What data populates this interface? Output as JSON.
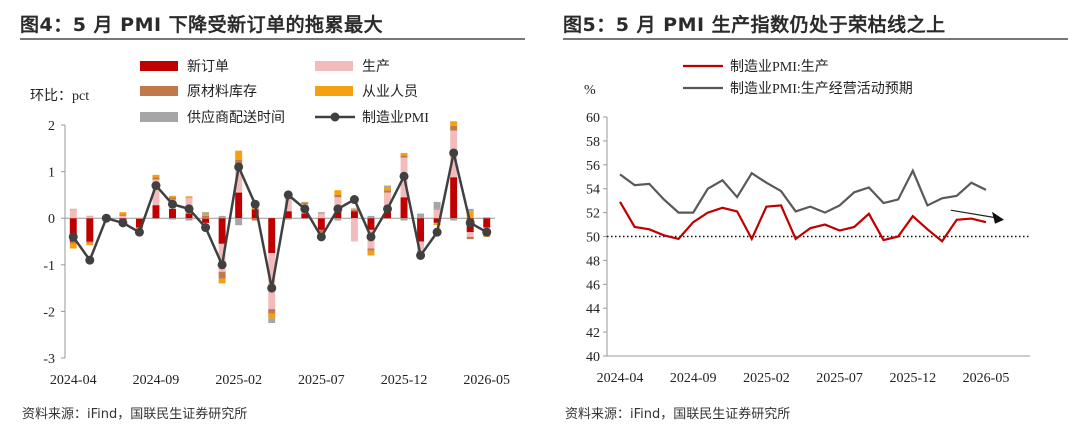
{
  "left_title": "图4：5 月 PMI 下降受新订单的拖累最大",
  "right_title": "图5：5 月 PMI 生产指数仍处于荣枯线之上",
  "left_source": "资料来源：iFind，国联民生证券研究所",
  "right_source": "资料来源：iFind，国联民生证券研究所",
  "chart_data": [
    {
      "type": "bar",
      "ylabel": "环比：pct",
      "ylim": [
        -3,
        2
      ],
      "yticks": [
        -3,
        -2,
        -1,
        0,
        1,
        2
      ],
      "x_ticks": [
        "2024-04",
        "2024-09",
        "2025-02",
        "2025-07",
        "2025-12",
        "2026-05"
      ],
      "x": [
        "2024-04",
        "2024-05",
        "2024-06",
        "2024-07",
        "2024-08",
        "2024-09",
        "2024-10",
        "2024-11",
        "2024-12",
        "2025-01",
        "2025-02",
        "2025-03",
        "2025-04",
        "2025-05",
        "2025-06",
        "2025-07",
        "2025-08",
        "2025-09",
        "2025-10",
        "2025-11",
        "2025-12",
        "2026-01",
        "2026-02",
        "2026-03",
        "2026-04",
        "2026-05"
      ],
      "legend_position": "top",
      "series": [
        {
          "name": "新订单",
          "kind": "bar",
          "color": "#c00000",
          "values": [
            -0.5,
            -0.5,
            0,
            -0.1,
            -0.2,
            0.28,
            0.2,
            0.1,
            -0.1,
            -0.55,
            0.55,
            0.2,
            -0.75,
            0.15,
            0.1,
            -0.25,
            0.2,
            0.15,
            -0.25,
            0.25,
            0.45,
            -0.5,
            -0.1,
            0.88,
            -0.3,
            -0.2
          ]
        },
        {
          "name": "生产",
          "kind": "bar",
          "color": "#f2bcbc",
          "values": [
            0.2,
            0.05,
            0.03,
            0.05,
            -0.1,
            0.55,
            0.2,
            0.35,
            0,
            -0.6,
            0.6,
            0,
            -1.2,
            0.35,
            0.2,
            0.1,
            0.25,
            -0.5,
            -0.4,
            0.3,
            0.85,
            -0.2,
            0.2,
            1.0,
            -0.1,
            -0.1
          ]
        },
        {
          "name": "原材料库存",
          "kind": "bar",
          "color": "#c07a4a",
          "values": [
            -0.05,
            -0.03,
            0,
            0.03,
            0,
            0.05,
            0.05,
            0,
            0.05,
            -0.15,
            0.1,
            -0.05,
            -0.1,
            0.03,
            0.03,
            -0.05,
            0.05,
            0.03,
            -0.05,
            0.05,
            0.05,
            -0.05,
            0,
            0.1,
            -0.05,
            -0.05
          ]
        },
        {
          "name": "从业人员",
          "kind": "bar",
          "color": "#f5a00f",
          "values": [
            -0.1,
            -0.05,
            0.02,
            0.05,
            0,
            0.05,
            0.03,
            0.02,
            0.03,
            -0.1,
            0.2,
            0.05,
            -0.1,
            0.03,
            0.02,
            -0.03,
            0.1,
            0.03,
            -0.1,
            0.05,
            0.05,
            -0.1,
            -0.05,
            0.1,
            0.15,
            -0.05
          ]
        },
        {
          "name": "供应商配送时间",
          "kind": "bar",
          "color": "#a6a6a6",
          "values": [
            0,
            0,
            0.02,
            -0.02,
            0,
            -0.02,
            -0.03,
            -0.05,
            0.05,
            0.05,
            -0.15,
            0.03,
            -0.1,
            -0.03,
            0,
            0.03,
            -0.05,
            0,
            0.05,
            0.05,
            -0.05,
            0.1,
            0.15,
            -0.05,
            0.05,
            0.02
          ]
        },
        {
          "name": "制造业PMI",
          "kind": "line",
          "color": "#404040",
          "values": [
            -0.4,
            -0.9,
            0,
            -0.1,
            -0.3,
            0.7,
            0.3,
            0.2,
            -0.2,
            -1.0,
            1.1,
            0.3,
            -1.5,
            0.5,
            0.2,
            -0.4,
            0.2,
            0.4,
            -0.4,
            0.2,
            0.9,
            -0.8,
            -0.3,
            1.4,
            -0.1,
            -0.3
          ]
        }
      ]
    },
    {
      "type": "line",
      "ylabel": "%",
      "ylim": [
        40,
        60
      ],
      "yticks": [
        40,
        42,
        44,
        46,
        48,
        50,
        52,
        54,
        56,
        58,
        60
      ],
      "x_ticks": [
        "2024-04",
        "2024-09",
        "2025-02",
        "2025-07",
        "2025-12",
        "2026-05"
      ],
      "x": [
        "2024-04",
        "2024-05",
        "2024-06",
        "2024-07",
        "2024-08",
        "2024-09",
        "2024-10",
        "2024-11",
        "2024-12",
        "2025-01",
        "2025-02",
        "2025-03",
        "2025-04",
        "2025-05",
        "2025-06",
        "2025-07",
        "2025-08",
        "2025-09",
        "2025-10",
        "2025-11",
        "2025-12",
        "2026-01",
        "2026-02",
        "2026-03",
        "2026-04",
        "2026-05"
      ],
      "reference_line": 50,
      "legend_position": "top",
      "series": [
        {
          "name": "制造业PMI:生产",
          "color": "#c00000",
          "values": [
            52.9,
            50.8,
            50.6,
            50.1,
            49.8,
            51.2,
            52.0,
            52.4,
            52.1,
            49.8,
            52.5,
            52.6,
            49.8,
            50.7,
            51.0,
            50.5,
            50.8,
            51.9,
            49.7,
            50.0,
            51.7,
            50.6,
            49.6,
            51.4,
            51.5,
            51.2
          ]
        },
        {
          "name": "制造业PMI:生产经营活动预期",
          "color": "#595959",
          "values": [
            55.2,
            54.3,
            54.4,
            53.1,
            52.0,
            52.0,
            54.0,
            54.7,
            53.3,
            55.3,
            54.5,
            53.8,
            52.1,
            52.5,
            52.0,
            52.6,
            53.7,
            54.1,
            52.8,
            53.1,
            55.5,
            52.6,
            53.2,
            53.4,
            54.5,
            53.9
          ]
        }
      ]
    }
  ]
}
